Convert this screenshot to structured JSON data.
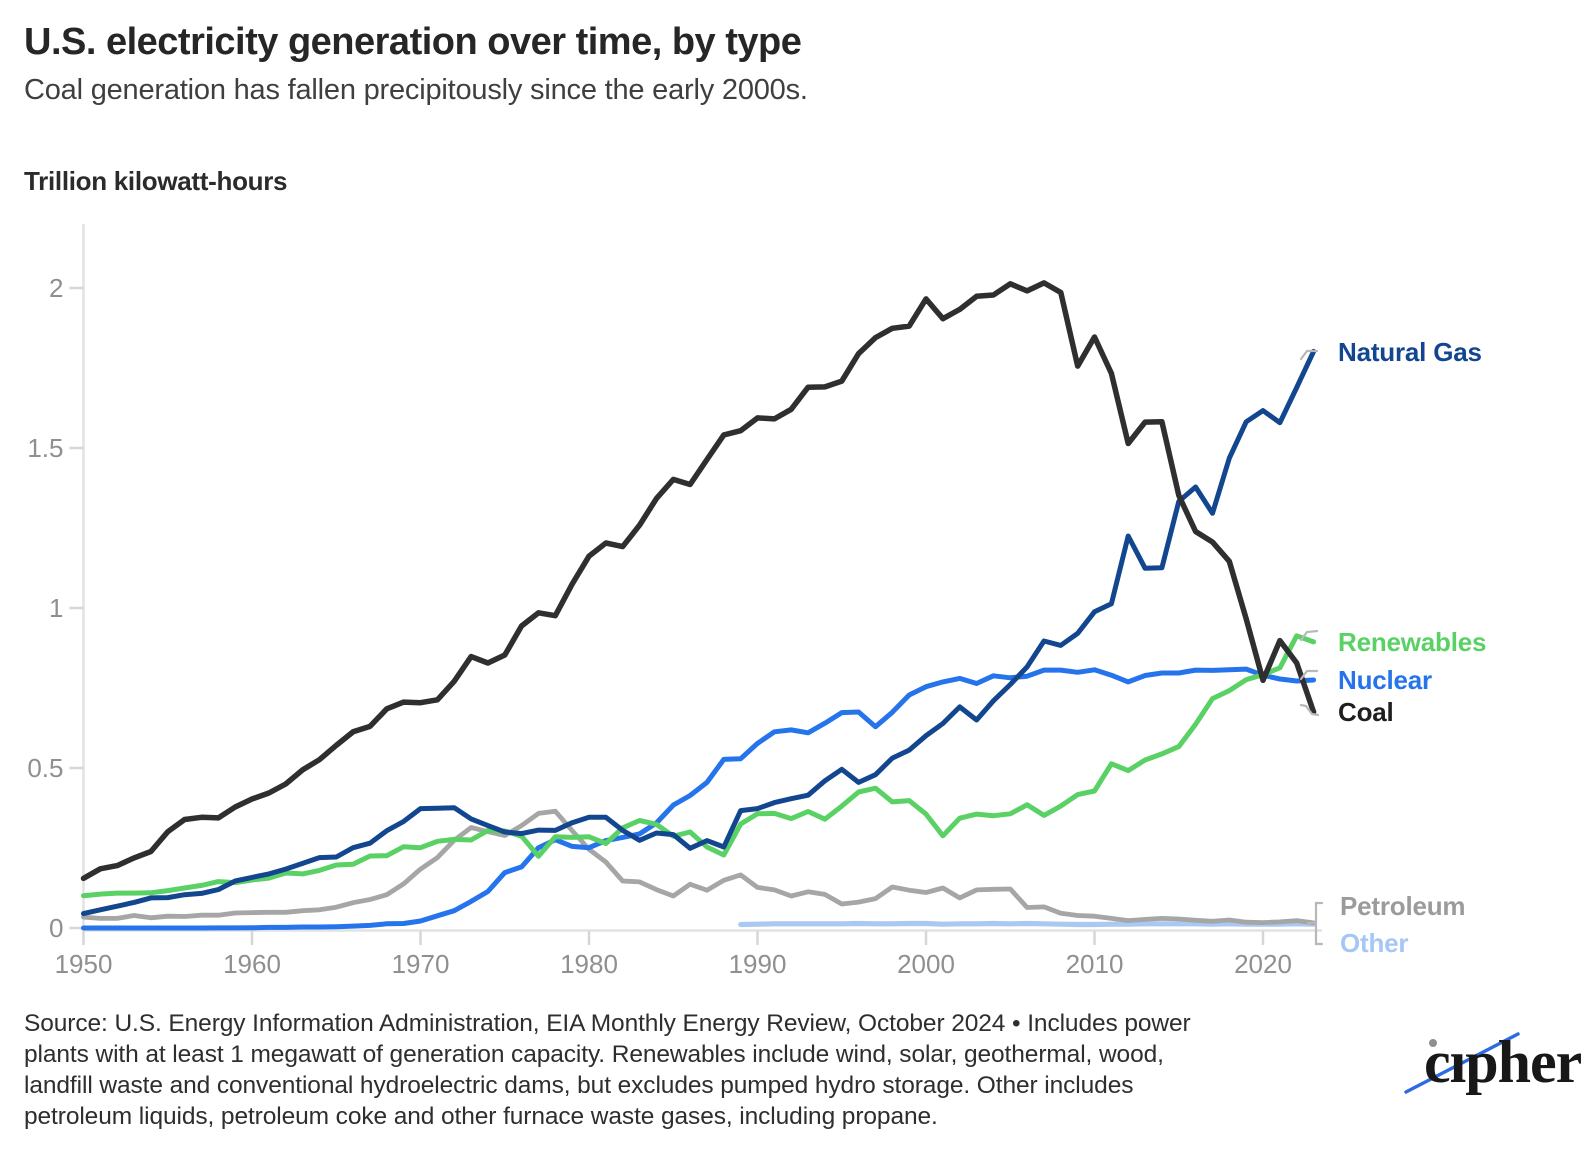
{
  "header": {
    "title": "U.S. electricity generation over time, by type",
    "subtitle": "Coal generation has fallen precipitously since the early 2000s."
  },
  "axis_title": "Trillion kilowatt-hours",
  "footer": {
    "source_lines": {
      "0": "Source: U.S. Energy Information Administration, EIA Monthly Energy Review, October 2024 • Includes power",
      "1": "plants with at least 1 megawatt of generation capacity. Renewables include wind, solar, geothermal, wood,",
      "2": "landfill waste and conventional hydroelectric dams, but excludes pumped hydro storage. Other includes",
      "3": "petroleum liquids, petroleum coke and other furnace waste gases, including propane."
    },
    "logo_text": "cıpher"
  },
  "colors": {
    "axis_line": "#e2e2e2",
    "tick_mark": "#d6d6d6",
    "tick_label": "#8f8f8f",
    "connector": "#b8b8b8",
    "logo_slash": "#2f6be0"
  },
  "chart_data": {
    "type": "line",
    "title": "U.S. electricity generation over time, by type",
    "subtitle": "Coal generation has fallen precipitously since the early 2000s.",
    "xlabel": "",
    "ylabel": "Trillion kilowatt-hours",
    "xlim": [
      1950,
      2023.5
    ],
    "ylim": [
      0,
      2.2
    ],
    "x_ticks": [
      1950,
      1960,
      1970,
      1980,
      1990,
      2000,
      2010,
      2020
    ],
    "y_ticks": [
      0,
      0.5,
      1,
      1.5,
      2
    ],
    "grid": false,
    "legend_position": "right-of-line-ends",
    "series": [
      {
        "label": "Other",
        "color": "#a9c9f3",
        "label_color": "#a5c7f5",
        "start_year": 1989,
        "values": [
          0.011,
          0.012,
          0.013,
          0.013,
          0.013,
          0.013,
          0.013,
          0.014,
          0.013,
          0.013,
          0.014,
          0.014,
          0.012,
          0.013,
          0.013,
          0.014,
          0.013,
          0.014,
          0.013,
          0.012,
          0.011,
          0.011,
          0.012,
          0.012,
          0.013,
          0.013,
          0.013,
          0.013,
          0.012,
          0.013,
          0.012,
          0.012,
          0.012,
          0.013,
          0.012
        ]
      },
      {
        "label": "Petroleum",
        "color": "#a6a6a6",
        "label_color": "#9b9b9b",
        "start_year": 1950,
        "values": [
          0.034,
          0.03,
          0.03,
          0.039,
          0.032,
          0.037,
          0.036,
          0.04,
          0.04,
          0.047,
          0.048,
          0.049,
          0.049,
          0.054,
          0.057,
          0.065,
          0.079,
          0.089,
          0.104,
          0.138,
          0.184,
          0.22,
          0.274,
          0.314,
          0.301,
          0.289,
          0.32,
          0.358,
          0.365,
          0.304,
          0.246,
          0.206,
          0.147,
          0.144,
          0.12,
          0.1,
          0.137,
          0.118,
          0.149,
          0.166,
          0.127,
          0.119,
          0.1,
          0.113,
          0.105,
          0.075,
          0.081,
          0.092,
          0.128,
          0.118,
          0.111,
          0.125,
          0.094,
          0.119,
          0.121,
          0.122,
          0.064,
          0.066,
          0.046,
          0.039,
          0.037,
          0.03,
          0.023,
          0.027,
          0.03,
          0.028,
          0.024,
          0.021,
          0.025,
          0.018,
          0.017,
          0.019,
          0.023,
          0.016
        ]
      },
      {
        "label": "Nuclear",
        "color": "#2574ec",
        "label_color": "#2574ec",
        "start_year": 1950,
        "values": [
          0,
          0,
          0,
          0,
          0,
          0,
          0,
          0.0001,
          0.0002,
          0.0002,
          0.0005,
          0.002,
          0.002,
          0.003,
          0.003,
          0.004,
          0.006,
          0.008,
          0.013,
          0.014,
          0.022,
          0.038,
          0.054,
          0.083,
          0.114,
          0.173,
          0.191,
          0.251,
          0.276,
          0.255,
          0.251,
          0.273,
          0.283,
          0.294,
          0.328,
          0.384,
          0.414,
          0.455,
          0.527,
          0.529,
          0.577,
          0.613,
          0.619,
          0.61,
          0.64,
          0.673,
          0.675,
          0.629,
          0.674,
          0.728,
          0.754,
          0.769,
          0.78,
          0.764,
          0.788,
          0.782,
          0.787,
          0.806,
          0.806,
          0.799,
          0.807,
          0.79,
          0.769,
          0.789,
          0.797,
          0.797,
          0.806,
          0.805,
          0.807,
          0.809,
          0.79,
          0.778,
          0.772,
          0.775
        ]
      },
      {
        "label": "Renewables",
        "color": "#5ad164",
        "label_color": "#5ad164",
        "start_year": 1950,
        "values": [
          0.101,
          0.106,
          0.109,
          0.109,
          0.11,
          0.117,
          0.125,
          0.133,
          0.145,
          0.142,
          0.15,
          0.156,
          0.172,
          0.169,
          0.18,
          0.197,
          0.199,
          0.225,
          0.226,
          0.254,
          0.251,
          0.271,
          0.277,
          0.275,
          0.305,
          0.303,
          0.287,
          0.224,
          0.285,
          0.283,
          0.285,
          0.264,
          0.313,
          0.336,
          0.324,
          0.287,
          0.3,
          0.253,
          0.228,
          0.325,
          0.357,
          0.358,
          0.342,
          0.364,
          0.34,
          0.381,
          0.425,
          0.437,
          0.394,
          0.398,
          0.356,
          0.288,
          0.343,
          0.356,
          0.351,
          0.357,
          0.385,
          0.352,
          0.381,
          0.417,
          0.428,
          0.513,
          0.492,
          0.525,
          0.544,
          0.567,
          0.637,
          0.717,
          0.742,
          0.776,
          0.792,
          0.813,
          0.913,
          0.894
        ]
      },
      {
        "label": "Natural Gas",
        "color": "#12468f",
        "label_color": "#12468f",
        "start_year": 1950,
        "values": [
          0.045,
          0.057,
          0.068,
          0.08,
          0.094,
          0.095,
          0.104,
          0.108,
          0.12,
          0.147,
          0.158,
          0.169,
          0.184,
          0.202,
          0.22,
          0.222,
          0.251,
          0.265,
          0.304,
          0.333,
          0.373,
          0.374,
          0.376,
          0.341,
          0.32,
          0.3,
          0.295,
          0.306,
          0.305,
          0.329,
          0.346,
          0.346,
          0.305,
          0.274,
          0.297,
          0.292,
          0.249,
          0.273,
          0.253,
          0.367,
          0.373,
          0.392,
          0.404,
          0.415,
          0.46,
          0.496,
          0.455,
          0.479,
          0.531,
          0.556,
          0.601,
          0.639,
          0.691,
          0.65,
          0.71,
          0.761,
          0.816,
          0.897,
          0.883,
          0.921,
          0.988,
          1.013,
          1.225,
          1.124,
          1.126,
          1.333,
          1.378,
          1.296,
          1.468,
          1.582,
          1.617,
          1.579,
          1.689,
          1.802
        ]
      },
      {
        "label": "Coal",
        "color": "#2f2f2f",
        "label_color": "#1f1f1f",
        "start_year": 1950,
        "values": [
          0.155,
          0.185,
          0.195,
          0.219,
          0.239,
          0.301,
          0.339,
          0.346,
          0.344,
          0.378,
          0.403,
          0.422,
          0.45,
          0.494,
          0.526,
          0.571,
          0.613,
          0.63,
          0.685,
          0.706,
          0.704,
          0.713,
          0.771,
          0.848,
          0.828,
          0.853,
          0.944,
          0.985,
          0.976,
          1.075,
          1.162,
          1.203,
          1.192,
          1.259,
          1.342,
          1.402,
          1.386,
          1.464,
          1.541,
          1.554,
          1.594,
          1.591,
          1.621,
          1.69,
          1.691,
          1.709,
          1.795,
          1.845,
          1.874,
          1.881,
          1.966,
          1.904,
          1.933,
          1.974,
          1.978,
          2.013,
          1.991,
          2.016,
          1.986,
          1.756,
          1.847,
          1.733,
          1.514,
          1.581,
          1.582,
          1.352,
          1.239,
          1.206,
          1.146,
          0.966,
          0.774,
          0.898,
          0.828,
          0.675
        ]
      }
    ]
  }
}
